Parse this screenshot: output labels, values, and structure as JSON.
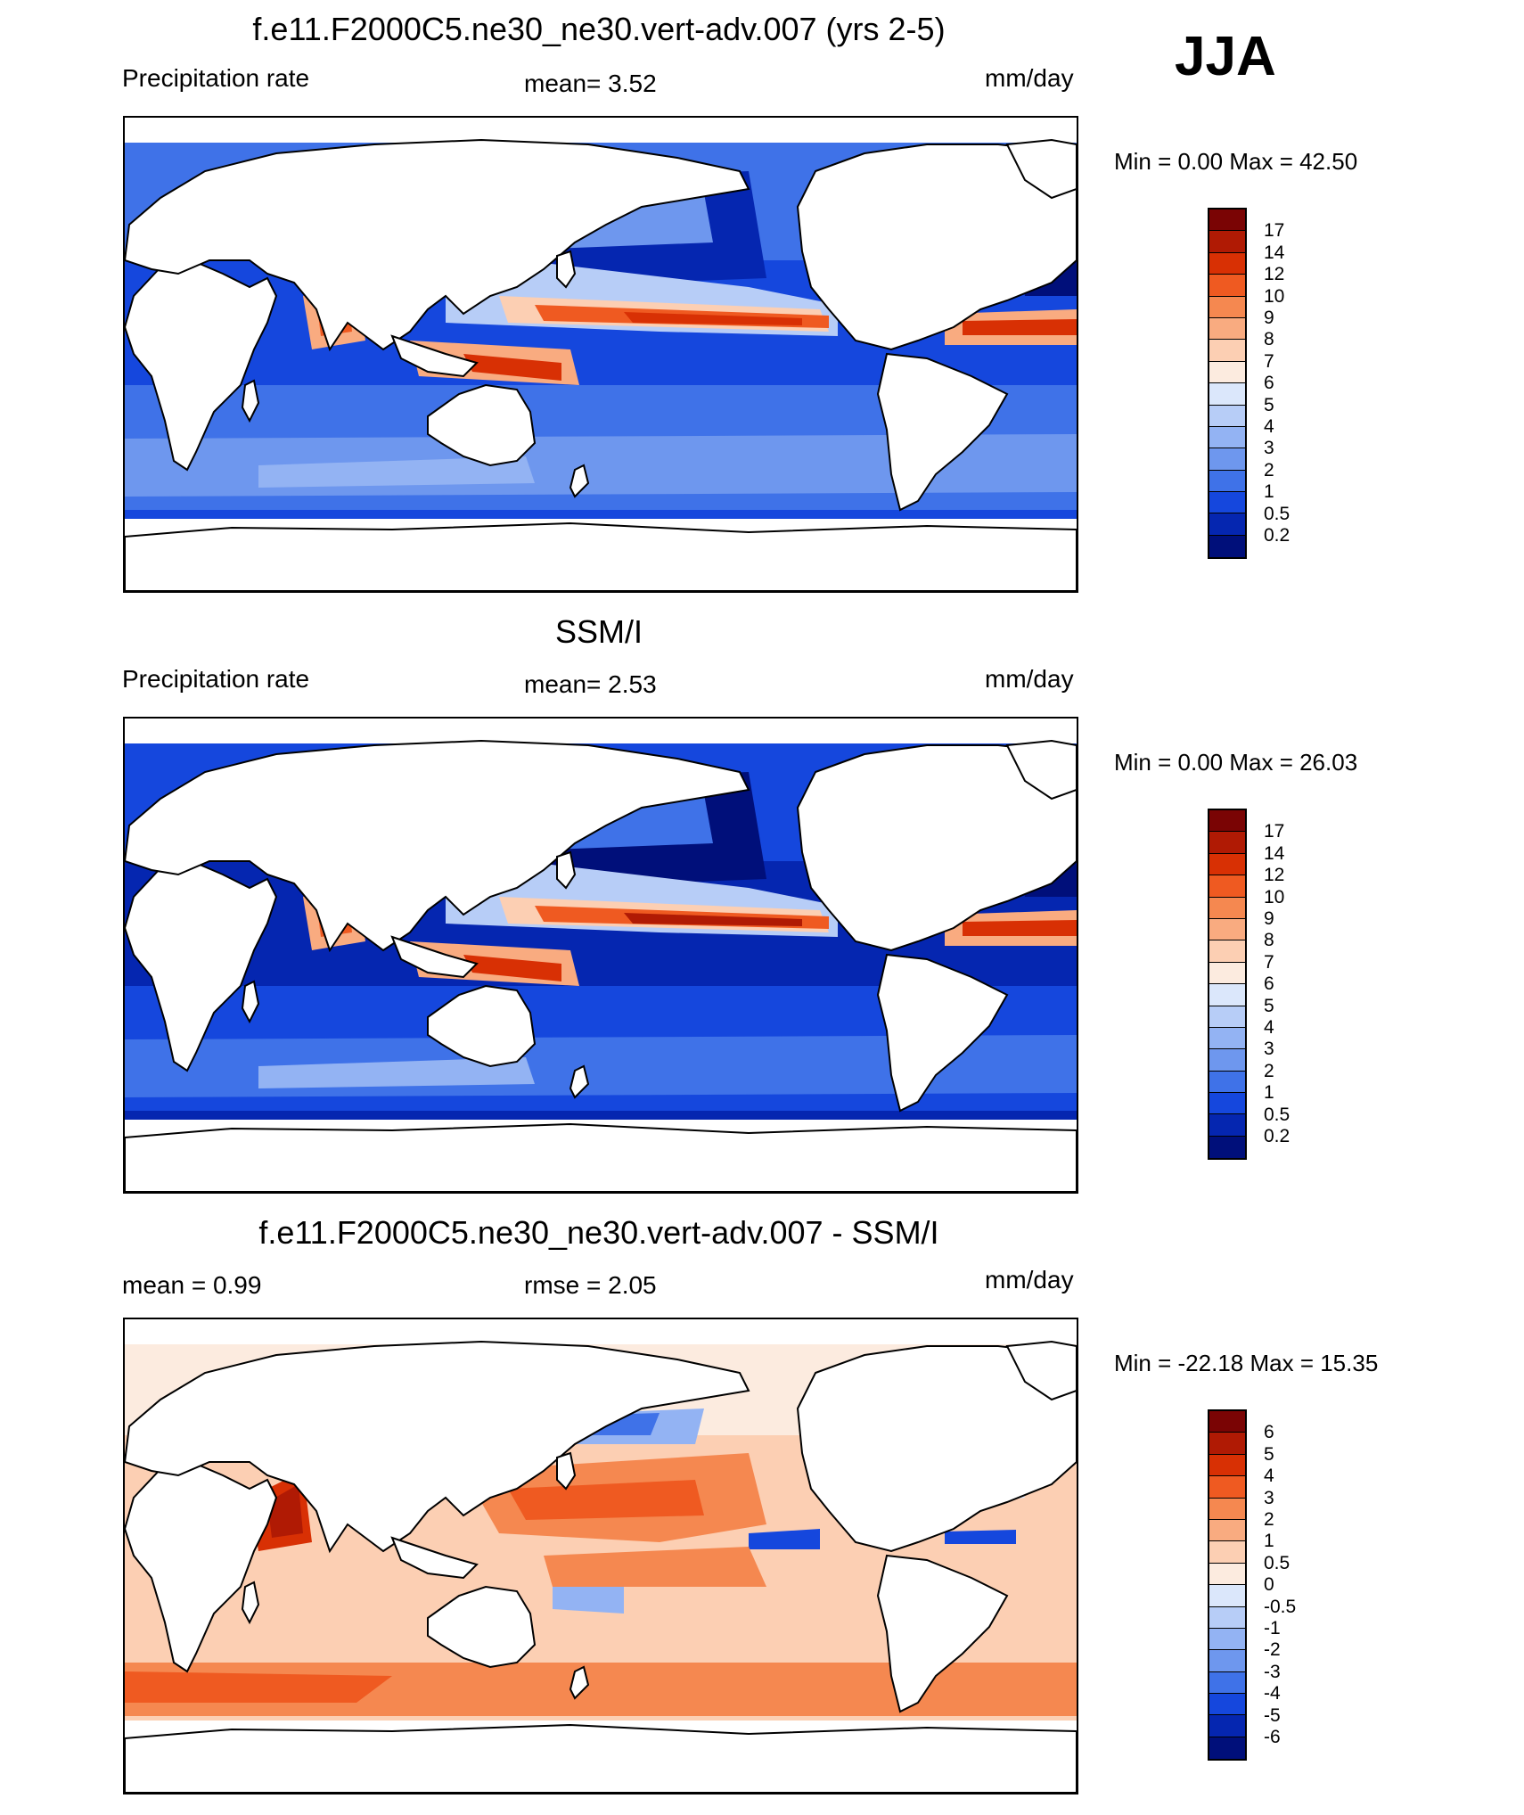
{
  "season_label": "JJA",
  "panels": [
    {
      "title": "f.e11.F2000C5.ne30_ne30.vert-adv.007 (yrs 2-5)",
      "left_label": "Precipitation rate",
      "center_label": "mean=   3.52",
      "units": "mm/day",
      "min_max": "Min =   0.00 Max =  42.50",
      "colorbar": {
        "labels": [
          "17",
          "14",
          "12",
          "10",
          "9",
          "8",
          "7",
          "6",
          "5",
          "4",
          "3",
          "2",
          "1",
          "0.5",
          "0.2"
        ],
        "colors": [
          "#7a0404",
          "#b01a04",
          "#d83004",
          "#ef5a21",
          "#f58850",
          "#f9ab80",
          "#fccfb3",
          "#fcebdf",
          "#dbe7fb",
          "#b7cdf7",
          "#93b3f3",
          "#6e97ee",
          "#3f72e8",
          "#1547dd",
          "#0526b0",
          "#000f7a"
        ]
      },
      "pattern": "model"
    },
    {
      "title": "SSM/I",
      "left_label": "Precipitation rate",
      "center_label": "mean=   2.53",
      "units": "mm/day",
      "min_max": "Min =   0.00 Max =  26.03",
      "colorbar": {
        "labels": [
          "17",
          "14",
          "12",
          "10",
          "9",
          "8",
          "7",
          "6",
          "5",
          "4",
          "3",
          "2",
          "1",
          "0.5",
          "0.2"
        ],
        "colors": [
          "#7a0404",
          "#b01a04",
          "#d83004",
          "#ef5a21",
          "#f58850",
          "#f9ab80",
          "#fccfb3",
          "#fcebdf",
          "#dbe7fb",
          "#b7cdf7",
          "#93b3f3",
          "#6e97ee",
          "#3f72e8",
          "#1547dd",
          "#0526b0",
          "#000f7a"
        ]
      },
      "pattern": "obs"
    },
    {
      "title": "f.e11.F2000C5.ne30_ne30.vert-adv.007 - SSM/I",
      "left_label": "mean =   0.99",
      "center_label": "rmse =   2.05",
      "units": "mm/day",
      "min_max": "Min = -22.18 Max =  15.35",
      "colorbar": {
        "labels": [
          "6",
          "5",
          "4",
          "3",
          "2",
          "1",
          "0.5",
          "0",
          "-0.5",
          "-1",
          "-2",
          "-3",
          "-4",
          "-5",
          "-6"
        ],
        "colors": [
          "#7a0404",
          "#b01a04",
          "#d83004",
          "#ef5a21",
          "#f58850",
          "#f9ab80",
          "#fccfb3",
          "#fcebdf",
          "#dbe7fb",
          "#b7cdf7",
          "#93b3f3",
          "#6e97ee",
          "#3f72e8",
          "#1547dd",
          "#0526b0",
          "#000f7a"
        ]
      },
      "pattern": "diff"
    }
  ]
}
